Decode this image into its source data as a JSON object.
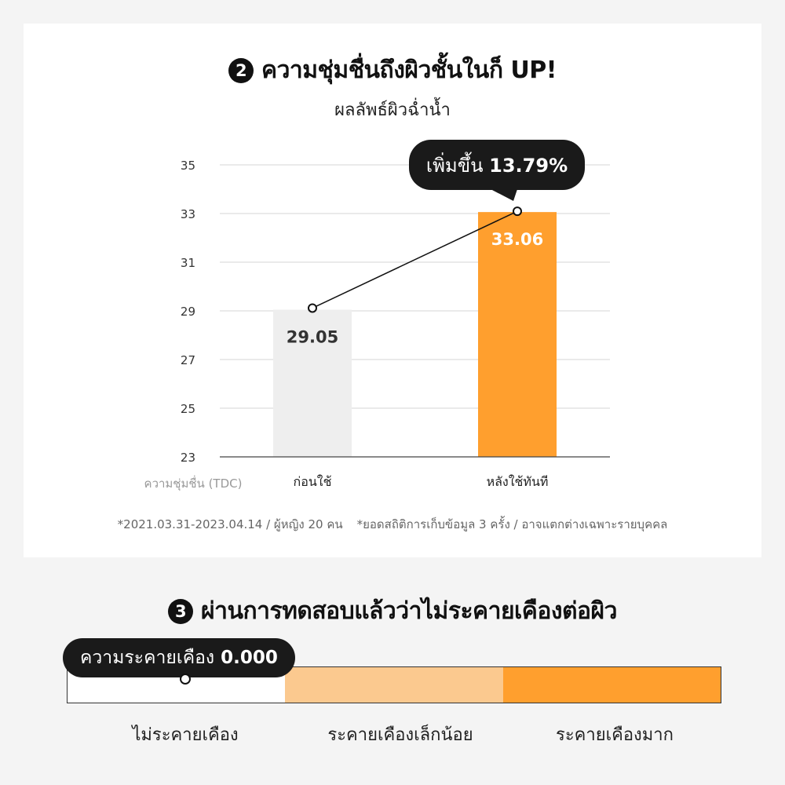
{
  "section2": {
    "number": "2",
    "title": "ความชุ่มชื่นถึงผิวชั้นในก็ UP!",
    "subtitle": "ผลลัพธ์ผิวฉ่ำน้ำ"
  },
  "chart_data": {
    "type": "bar",
    "title": "ผลลัพธ์ผิวฉ่ำน้ำ",
    "ylabel": "ความชุ่มชื่น (TDC)",
    "categories": [
      "ก่อนใช้",
      "หลังใช้ทันที"
    ],
    "values": [
      29.05,
      33.06
    ],
    "value_labels": [
      "29.05",
      "33.06"
    ],
    "yticks": [
      "23",
      "25",
      "27",
      "29",
      "31",
      "33",
      "35"
    ],
    "ylim": [
      23,
      35
    ],
    "grid": true,
    "bar_colors": [
      "#eeeeee",
      "#ff9f2e"
    ],
    "label_colors": [
      "#333333",
      "#ffffff"
    ],
    "connector_line": true,
    "callout": {
      "prefix": "เพิ่มขึ้น",
      "value": "13.79%"
    }
  },
  "footnotes": [
    "*2021.03.31-2023.04.14 / ผู้หญิง 20 คน",
    "*ยอดสถิติการเก็บข้อมูล 3 ครั้ง / อาจแตกต่างเฉพาะรายบุคคล"
  ],
  "section3": {
    "number": "3",
    "title": "ผ่านการทดสอบแล้วว่าไม่ระคายเคืองต่อผิว",
    "indicator_label": "ความระคายเคือง",
    "indicator_value": "0.000",
    "segments": [
      {
        "label": "ไม่ระคายเคือง",
        "color": "#ffffff"
      },
      {
        "label": "ระคายเคืองเล็กน้อย",
        "color": "#fbc98f"
      },
      {
        "label": "ระคายเคืองมาก",
        "color": "#ff9f2e"
      }
    ]
  }
}
